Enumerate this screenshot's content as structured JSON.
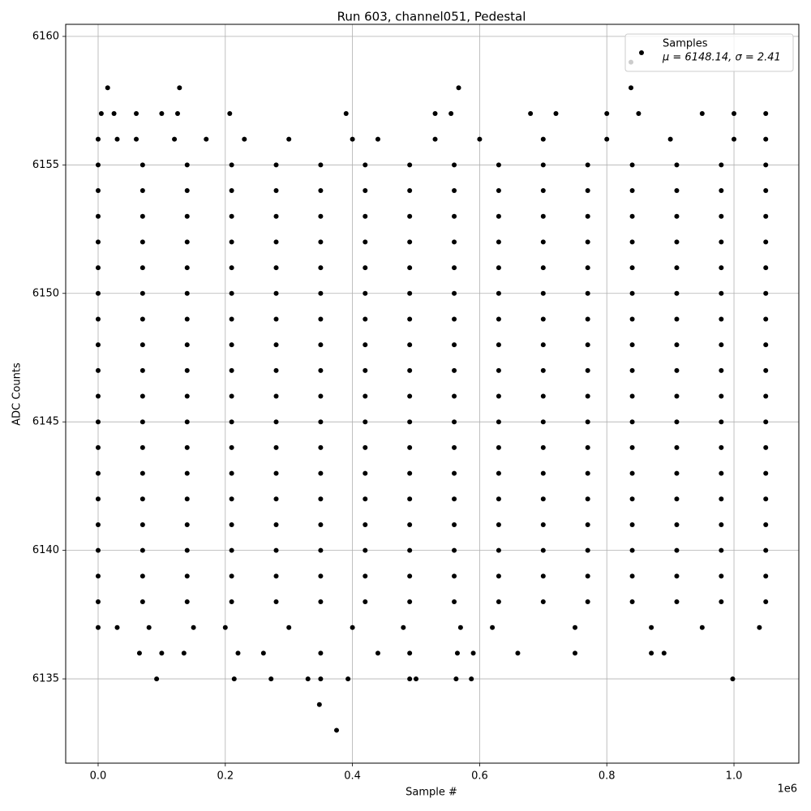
{
  "chart_data": {
    "type": "scatter",
    "title": "Run 603, channel051, Pedestal",
    "x_label": "Sample #",
    "y_label": "ADC Counts",
    "x_offset_label": "1e6",
    "legend_note": "μ = 6148.14, σ = 2.41",
    "legend": "upper right",
    "grid": true,
    "xlim": [
      -51000,
      1102000
    ],
    "ylim": [
      6131.72,
      6160.47
    ],
    "xticks": [
      {
        "value": 0,
        "label": "0.0"
      },
      {
        "value": 200000,
        "label": "0.2"
      },
      {
        "value": 400000,
        "label": "0.4"
      },
      {
        "value": 600000,
        "label": "0.6"
      },
      {
        "value": 800000,
        "label": "0.8"
      },
      {
        "value": 1000000,
        "label": "1.0"
      }
    ],
    "yticks": [
      6135,
      6140,
      6145,
      6150,
      6155,
      6160
    ],
    "x": [
      0,
      70000,
      140000,
      210000,
      280000,
      350000,
      420000,
      490000,
      560000,
      630000,
      700000,
      770000,
      840000,
      910000,
      980000,
      1050000,
      0,
      70000,
      140000,
      210000,
      280000,
      350000,
      420000,
      490000,
      560000,
      630000,
      700000,
      770000,
      840000,
      910000,
      980000,
      1050000,
      0,
      70000,
      140000,
      210000,
      280000,
      350000,
      420000,
      490000,
      560000,
      630000,
      700000,
      770000,
      840000,
      910000,
      980000,
      1050000,
      0,
      70000,
      140000,
      210000,
      280000,
      350000,
      420000,
      490000,
      560000,
      630000,
      700000,
      770000,
      840000,
      910000,
      980000,
      1050000,
      0,
      70000,
      140000,
      210000,
      280000,
      350000,
      420000,
      490000,
      560000,
      630000,
      700000,
      770000,
      840000,
      910000,
      980000,
      1050000,
      0,
      70000,
      140000,
      210000,
      280000,
      350000,
      420000,
      490000,
      560000,
      630000,
      700000,
      770000,
      840000,
      910000,
      980000,
      1050000,
      0,
      70000,
      140000,
      210000,
      280000,
      350000,
      420000,
      490000,
      560000,
      630000,
      700000,
      770000,
      840000,
      910000,
      980000,
      1050000,
      0,
      70000,
      140000,
      210000,
      280000,
      350000,
      420000,
      490000,
      560000,
      630000,
      700000,
      770000,
      840000,
      910000,
      980000,
      1050000,
      0,
      70000,
      140000,
      210000,
      280000,
      350000,
      420000,
      490000,
      560000,
      630000,
      700000,
      770000,
      840000,
      910000,
      980000,
      1050000,
      0,
      70000,
      140000,
      210000,
      280000,
      350000,
      420000,
      490000,
      560000,
      630000,
      700000,
      770000,
      840000,
      910000,
      980000,
      1050000,
      0,
      70000,
      140000,
      210000,
      280000,
      350000,
      420000,
      490000,
      560000,
      630000,
      700000,
      770000,
      840000,
      910000,
      980000,
      1050000,
      0,
      70000,
      140000,
      210000,
      280000,
      350000,
      420000,
      490000,
      560000,
      630000,
      700000,
      770000,
      840000,
      910000,
      980000,
      1050000,
      0,
      70000,
      140000,
      210000,
      280000,
      350000,
      420000,
      490000,
      560000,
      630000,
      700000,
      770000,
      840000,
      910000,
      980000,
      1050000,
      0,
      70000,
      140000,
      210000,
      280000,
      350000,
      420000,
      490000,
      560000,
      630000,
      700000,
      770000,
      840000,
      910000,
      980000,
      1050000,
      0,
      70000,
      140000,
      210000,
      280000,
      350000,
      420000,
      490000,
      560000,
      630000,
      700000,
      770000,
      840000,
      910000,
      980000,
      1050000,
      0,
      70000,
      140000,
      210000,
      280000,
      350000,
      420000,
      490000,
      560000,
      630000,
      700000,
      770000,
      840000,
      910000,
      980000,
      1050000,
      0,
      70000,
      140000,
      210000,
      280000,
      350000,
      420000,
      490000,
      560000,
      630000,
      700000,
      770000,
      840000,
      910000,
      980000,
      1050000,
      0,
      70000,
      140000,
      210000,
      280000,
      350000,
      420000,
      490000,
      560000,
      630000,
      700000,
      770000,
      840000,
      910000,
      980000,
      1050000,
      0,
      30000,
      60000,
      120000,
      170000,
      230000,
      300000,
      400000,
      440000,
      530000,
      600000,
      700000,
      800000,
      900000,
      1000000,
      1050000,
      0,
      30000,
      80000,
      150000,
      200000,
      300000,
      400000,
      480000,
      570000,
      620000,
      750000,
      870000,
      950000,
      1040000,
      65000,
      100000,
      135000,
      220000,
      260000,
      350000,
      440000,
      490000,
      565000,
      590000,
      660000,
      750000,
      870000,
      890000,
      5000,
      25000,
      60000,
      100000,
      125000,
      207000,
      390000,
      530000,
      555000,
      680000,
      720000,
      800000,
      850000,
      950000,
      1000000,
      1050000,
      15000,
      128000,
      567000,
      838000,
      838000,
      92000,
      214000,
      272000,
      330000,
      350000,
      393000,
      490000,
      500000,
      563000,
      587000,
      998000,
      348000,
      375000
    ],
    "series": [
      {
        "name": "Samples",
        "color": "#000000",
        "values": [
          6155,
          6155,
          6155,
          6155,
          6155,
          6155,
          6155,
          6155,
          6155,
          6155,
          6155,
          6155,
          6155,
          6155,
          6155,
          6155,
          6154,
          6154,
          6154,
          6154,
          6154,
          6154,
          6154,
          6154,
          6154,
          6154,
          6154,
          6154,
          6154,
          6154,
          6154,
          6154,
          6153,
          6153,
          6153,
          6153,
          6153,
          6153,
          6153,
          6153,
          6153,
          6153,
          6153,
          6153,
          6153,
          6153,
          6153,
          6153,
          6152,
          6152,
          6152,
          6152,
          6152,
          6152,
          6152,
          6152,
          6152,
          6152,
          6152,
          6152,
          6152,
          6152,
          6152,
          6152,
          6151,
          6151,
          6151,
          6151,
          6151,
          6151,
          6151,
          6151,
          6151,
          6151,
          6151,
          6151,
          6151,
          6151,
          6151,
          6151,
          6150,
          6150,
          6150,
          6150,
          6150,
          6150,
          6150,
          6150,
          6150,
          6150,
          6150,
          6150,
          6150,
          6150,
          6150,
          6150,
          6149,
          6149,
          6149,
          6149,
          6149,
          6149,
          6149,
          6149,
          6149,
          6149,
          6149,
          6149,
          6149,
          6149,
          6149,
          6149,
          6148,
          6148,
          6148,
          6148,
          6148,
          6148,
          6148,
          6148,
          6148,
          6148,
          6148,
          6148,
          6148,
          6148,
          6148,
          6148,
          6147,
          6147,
          6147,
          6147,
          6147,
          6147,
          6147,
          6147,
          6147,
          6147,
          6147,
          6147,
          6147,
          6147,
          6147,
          6147,
          6146,
          6146,
          6146,
          6146,
          6146,
          6146,
          6146,
          6146,
          6146,
          6146,
          6146,
          6146,
          6146,
          6146,
          6146,
          6146,
          6145,
          6145,
          6145,
          6145,
          6145,
          6145,
          6145,
          6145,
          6145,
          6145,
          6145,
          6145,
          6145,
          6145,
          6145,
          6145,
          6144,
          6144,
          6144,
          6144,
          6144,
          6144,
          6144,
          6144,
          6144,
          6144,
          6144,
          6144,
          6144,
          6144,
          6144,
          6144,
          6143,
          6143,
          6143,
          6143,
          6143,
          6143,
          6143,
          6143,
          6143,
          6143,
          6143,
          6143,
          6143,
          6143,
          6143,
          6143,
          6142,
          6142,
          6142,
          6142,
          6142,
          6142,
          6142,
          6142,
          6142,
          6142,
          6142,
          6142,
          6142,
          6142,
          6142,
          6142,
          6141,
          6141,
          6141,
          6141,
          6141,
          6141,
          6141,
          6141,
          6141,
          6141,
          6141,
          6141,
          6141,
          6141,
          6141,
          6141,
          6140,
          6140,
          6140,
          6140,
          6140,
          6140,
          6140,
          6140,
          6140,
          6140,
          6140,
          6140,
          6140,
          6140,
          6140,
          6140,
          6139,
          6139,
          6139,
          6139,
          6139,
          6139,
          6139,
          6139,
          6139,
          6139,
          6139,
          6139,
          6139,
          6139,
          6139,
          6139,
          6138,
          6138,
          6138,
          6138,
          6138,
          6138,
          6138,
          6138,
          6138,
          6138,
          6138,
          6138,
          6138,
          6138,
          6138,
          6138,
          6156,
          6156,
          6156,
          6156,
          6156,
          6156,
          6156,
          6156,
          6156,
          6156,
          6156,
          6156,
          6156,
          6156,
          6156,
          6156,
          6137,
          6137,
          6137,
          6137,
          6137,
          6137,
          6137,
          6137,
          6137,
          6137,
          6137,
          6137,
          6137,
          6137,
          6136,
          6136,
          6136,
          6136,
          6136,
          6136,
          6136,
          6136,
          6136,
          6136,
          6136,
          6136,
          6136,
          6136,
          6157,
          6157,
          6157,
          6157,
          6157,
          6157,
          6157,
          6157,
          6157,
          6157,
          6157,
          6157,
          6157,
          6157,
          6157,
          6157,
          6158,
          6158,
          6158,
          6158,
          6159,
          6135,
          6135,
          6135,
          6135,
          6135,
          6135,
          6135,
          6135,
          6135,
          6135,
          6135,
          6134,
          6133
        ]
      }
    ]
  }
}
